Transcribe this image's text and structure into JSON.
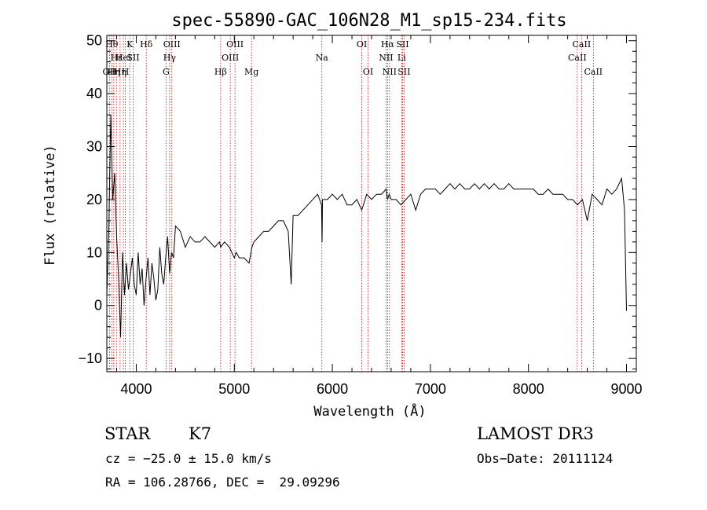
{
  "chart_data": {
    "type": "line",
    "title": "spec-55890-GAC_106N28_M1_sp15-234.fits",
    "xlabel": "Wavelength (Å)",
    "ylabel": "Flux (relative)",
    "xlim": [
      3700,
      9100
    ],
    "ylim": [
      -12.5,
      51
    ],
    "xticks": [
      4000,
      5000,
      6000,
      7000,
      8000,
      9000
    ],
    "yticks": [
      -10,
      0,
      10,
      20,
      30,
      40,
      50
    ],
    "xtick_labels": [
      "4000",
      "5000",
      "6000",
      "7000",
      "8000",
      "9000"
    ],
    "ytick_labels": [
      "−10",
      "0",
      "10",
      "20",
      "30",
      "40",
      "50"
    ],
    "line_color": "#000000",
    "marker_color": "#cc0000",
    "series": [
      {
        "name": "flux",
        "x": [
          3700,
          3720,
          3740,
          3760,
          3780,
          3800,
          3820,
          3840,
          3860,
          3880,
          3900,
          3920,
          3940,
          3960,
          3980,
          4000,
          4020,
          4040,
          4060,
          4080,
          4100,
          4120,
          4140,
          4160,
          4180,
          4200,
          4220,
          4240,
          4260,
          4280,
          4300,
          4320,
          4340,
          4360,
          4380,
          4400,
          4450,
          4500,
          4550,
          4600,
          4650,
          4700,
          4750,
          4800,
          4850,
          4860,
          4900,
          4950,
          5000,
          5020,
          5050,
          5100,
          5150,
          5180,
          5200,
          5250,
          5300,
          5350,
          5400,
          5450,
          5500,
          5550,
          5580,
          5600,
          5650,
          5700,
          5750,
          5800,
          5850,
          5890,
          5895,
          5900,
          5950,
          6000,
          6050,
          6100,
          6150,
          6200,
          6250,
          6300,
          6350,
          6400,
          6450,
          6500,
          6550,
          6563,
          6580,
          6600,
          6650,
          6700,
          6750,
          6800,
          6850,
          6900,
          6950,
          7000,
          7050,
          7100,
          7150,
          7200,
          7250,
          7300,
          7350,
          7400,
          7450,
          7500,
          7550,
          7600,
          7650,
          7700,
          7750,
          7800,
          7850,
          7900,
          7950,
          8000,
          8050,
          8100,
          8150,
          8200,
          8250,
          8300,
          8350,
          8400,
          8450,
          8500,
          8550,
          8600,
          8650,
          8700,
          8750,
          8800,
          8850,
          8900,
          8950,
          8980,
          9000
        ],
        "y": [
          2,
          14,
          36,
          20,
          25,
          13,
          5,
          -6,
          10,
          2,
          8,
          3,
          6,
          9,
          4,
          2,
          10,
          4,
          7,
          0,
          5,
          9,
          2,
          8,
          5,
          1,
          3,
          11,
          6,
          4,
          9,
          13,
          6,
          10,
          9,
          15,
          14,
          11,
          13,
          12,
          12,
          13,
          12,
          11,
          12,
          11,
          12,
          11,
          9,
          10,
          9,
          9,
          8,
          11,
          12,
          13,
          14,
          14,
          15,
          16,
          16,
          14,
          4,
          17,
          17,
          18,
          19,
          20,
          21,
          19,
          12,
          20,
          20,
          21,
          20,
          21,
          19,
          19,
          20,
          18,
          21,
          20,
          21,
          21,
          22,
          20,
          21,
          20,
          20,
          19,
          20,
          21,
          18,
          21,
          22,
          22,
          22,
          21,
          22,
          23,
          22,
          23,
          22,
          22,
          23,
          22,
          23,
          22,
          23,
          22,
          22,
          23,
          22,
          22,
          22,
          22,
          22,
          21,
          21,
          22,
          21,
          21,
          21,
          20,
          20,
          19,
          20,
          16,
          21,
          20,
          19,
          22,
          21,
          22,
          24,
          18,
          -1
        ]
      }
    ],
    "lines": [
      {
        "x": 3727,
        "label": "OII",
        "row": 2
      },
      {
        "x": 3750,
        "label": "Hθ",
        "row": 0
      },
      {
        "x": 3771,
        "label": "Hη",
        "row": 2
      },
      {
        "x": 3798,
        "label": "Hε",
        "row": 1
      },
      {
        "x": 3835,
        "label": "Hη",
        "row": 2
      },
      {
        "x": 3869,
        "label": "HeI",
        "row": 1
      },
      {
        "x": 3889,
        "label": "H",
        "row": 2
      },
      {
        "x": 3934,
        "label": "K",
        "row": 0
      },
      {
        "x": 3968,
        "label": "SII",
        "row": 1
      },
      {
        "x": 4102,
        "label": "Hδ",
        "row": 0
      },
      {
        "x": 4304,
        "label": "G",
        "row": 2
      },
      {
        "x": 4340,
        "label": "Hγ",
        "row": 1
      },
      {
        "x": 4363,
        "label": "OIII",
        "row": 0
      },
      {
        "x": 4861,
        "label": "Hβ",
        "row": 2
      },
      {
        "x": 4959,
        "label": "OIII",
        "row": 1
      },
      {
        "x": 5007,
        "label": "OIII",
        "row": 0
      },
      {
        "x": 5175,
        "label": "Mg",
        "row": 2
      },
      {
        "x": 5893,
        "label": "Na",
        "row": 1
      },
      {
        "x": 6300,
        "label": "OI",
        "row": 0
      },
      {
        "x": 6364,
        "label": "OI",
        "row": 2
      },
      {
        "x": 6548,
        "label": "NII",
        "row": 1
      },
      {
        "x": 6563,
        "label": "Hα",
        "row": 0
      },
      {
        "x": 6583,
        "label": "NII",
        "row": 2
      },
      {
        "x": 6707,
        "label": "Li",
        "row": 1
      },
      {
        "x": 6716,
        "label": "SII",
        "row": 0
      },
      {
        "x": 6731,
        "label": "SII",
        "row": 2
      },
      {
        "x": 8498,
        "label": "CaII",
        "row": 1
      },
      {
        "x": 8542,
        "label": "CaII",
        "row": 0
      },
      {
        "x": 8662,
        "label": "CaII",
        "row": 2
      }
    ]
  },
  "info": {
    "class": "STAR",
    "subclass": "K7",
    "survey": "LAMOST DR3",
    "cz": "cz = −25.0 ± 15.0 km/s",
    "obs_date": "Obs−Date: 20111124",
    "coords": "RA = 106.28766, DEC =  29.09296"
  }
}
